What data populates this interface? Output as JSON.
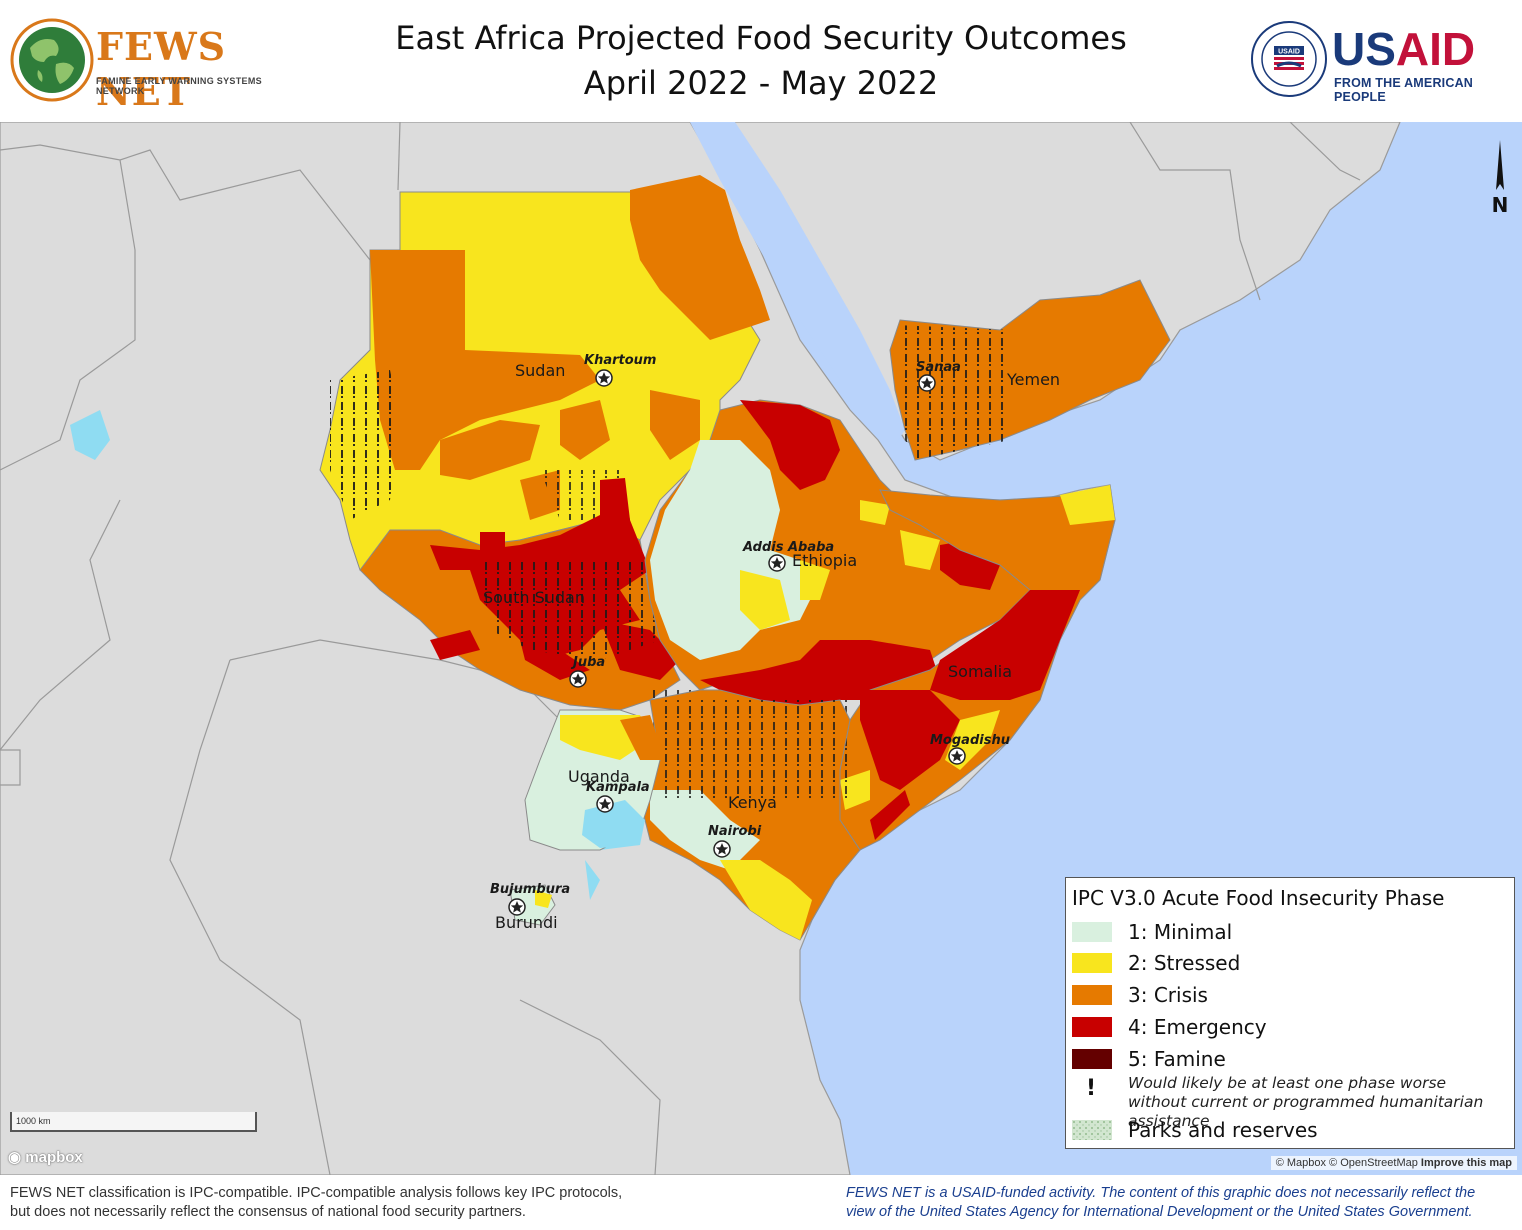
{
  "header": {
    "title_line1": "East Africa Projected Food Security Outcomes",
    "title_line2": "April 2022 - May 2022",
    "fews_logo_name": "FEWS NET",
    "fews_logo_tagline": "FAMINE EARLY WARNING SYSTEMS NETWORK",
    "usaid_logo_name_us": "US",
    "usaid_logo_name_aid": "AID",
    "usaid_logo_tagline": "FROM THE AMERICAN PEOPLE",
    "usaid_seal_text": "USAID"
  },
  "colors": {
    "water": "#b9d3fb",
    "land_outside": "#dcdcdc",
    "border": "#8a8a8a",
    "phase1": "#d9f0df",
    "phase2": "#f8e51e",
    "phase3": "#e67a00",
    "phase4": "#c80000",
    "phase5": "#640000",
    "usaid_red": "#c2113a",
    "usaid_blue": "#1a3a7a",
    "fews_orange": "#d9781a"
  },
  "map": {
    "countries": [
      "Sudan",
      "South Sudan",
      "Ethiopia",
      "Somalia",
      "Yemen",
      "Uganda",
      "Kenya",
      "Burundi"
    ],
    "cities": [
      "Khartoum",
      "Sanaa",
      "Addis Ababa",
      "Juba",
      "Mogadishu",
      "Kampala",
      "Nairobi",
      "Bujumbura"
    ],
    "north_arrow_label": "N",
    "scale_label": "1000 km",
    "mapbox_label": "mapbox",
    "attribution_prefix": "© Mapbox © OpenStreetMap",
    "attribution_link": "Improve this map"
  },
  "legend": {
    "title": "IPC V3.0 Acute Food Insecurity Phase",
    "items": [
      {
        "label": "1: Minimal",
        "color": "#d9f0df"
      },
      {
        "label": "2: Stressed",
        "color": "#f8e51e"
      },
      {
        "label": "3: Crisis",
        "color": "#e67a00"
      },
      {
        "label": "4: Emergency",
        "color": "#c80000"
      },
      {
        "label": "5: Famine",
        "color": "#640000"
      }
    ],
    "assistance_symbol": "!",
    "assistance_note": "Would likely be at least one phase worse without current or programmed humanitarian assistance",
    "parks_label": "Parks and reserves"
  },
  "footer": {
    "left_line1": "FEWS NET classification is IPC-compatible. IPC-compatible analysis follows key IPC protocols,",
    "left_line2": "but does not necessarily reflect the consensus of national food security partners.",
    "right_line1": "FEWS NET is a USAID-funded activity. The content of this graphic does not necessarily reflect the",
    "right_line2": "view of the United States Agency for International Development or the United States Government."
  }
}
